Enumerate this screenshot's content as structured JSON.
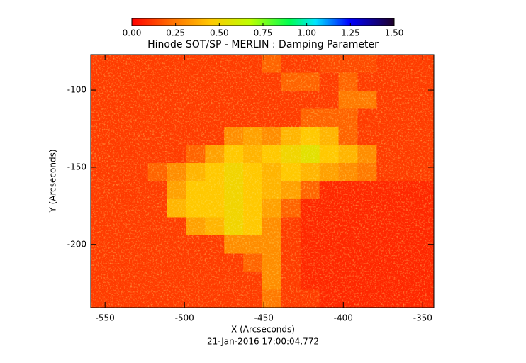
{
  "chart_data": {
    "type": "heatmap",
    "title": "Hinode SOT/SP - MERLIN : Damping Parameter",
    "x_label": "X (Arcseconds)",
    "y_label": "Y (Arcseconds)",
    "footer": "21-Jan-2016 17:00:04.772",
    "xlim": [
      -559,
      -343
    ],
    "ylim": [
      -241,
      -77
    ],
    "xticks": [
      -550,
      -500,
      -450,
      -400,
      -350
    ],
    "yticks": [
      -100,
      -150,
      -200
    ],
    "colorbar": {
      "range": [
        0,
        1.5
      ],
      "ticks": [
        {
          "value": 0,
          "label": "0.00"
        },
        {
          "value": 0.25,
          "label": "0.25"
        },
        {
          "value": 0.5,
          "label": "0.50"
        },
        {
          "value": 0.75,
          "label": "0.75"
        },
        {
          "value": 1,
          "label": "1.00"
        },
        {
          "value": 1.25,
          "label": "1.25"
        },
        {
          "value": 1.5,
          "label": "1.50"
        }
      ]
    },
    "z": [
      [
        0.12,
        0.12,
        0.12,
        0.12,
        0.12,
        0.12,
        0.12,
        0.12,
        0.12,
        0.2,
        0.12,
        0.12,
        0.15,
        0.15,
        0.15,
        0.12,
        0.12,
        0.12
      ],
      [
        0.12,
        0.12,
        0.12,
        0.12,
        0.12,
        0.12,
        0.12,
        0.12,
        0.12,
        0.12,
        0.2,
        0.2,
        0.12,
        0.2,
        0.12,
        0.12,
        0.12,
        0.12
      ],
      [
        0.12,
        0.12,
        0.12,
        0.12,
        0.12,
        0.12,
        0.12,
        0.12,
        0.12,
        0.12,
        0.12,
        0.12,
        0.12,
        0.25,
        0.25,
        0.12,
        0.12,
        0.12
      ],
      [
        0.12,
        0.12,
        0.12,
        0.12,
        0.12,
        0.12,
        0.12,
        0.12,
        0.12,
        0.12,
        0.12,
        0.2,
        0.2,
        0.2,
        0.12,
        0.12,
        0.12,
        0.12
      ],
      [
        0.12,
        0.12,
        0.12,
        0.12,
        0.12,
        0.12,
        0.12,
        0.3,
        0.35,
        0.3,
        0.4,
        0.45,
        0.4,
        0.2,
        0.12,
        0.12,
        0.12,
        0.12
      ],
      [
        0.12,
        0.12,
        0.12,
        0.12,
        0.12,
        0.2,
        0.35,
        0.45,
        0.4,
        0.45,
        0.5,
        0.55,
        0.45,
        0.4,
        0.3,
        0.12,
        0.12,
        0.12
      ],
      [
        0.12,
        0.12,
        0.12,
        0.2,
        0.3,
        0.4,
        0.45,
        0.5,
        0.45,
        0.4,
        0.45,
        0.4,
        0.35,
        0.3,
        0.25,
        0.12,
        0.12,
        0.12
      ],
      [
        0.12,
        0.12,
        0.12,
        0.12,
        0.35,
        0.45,
        0.45,
        0.5,
        0.45,
        0.4,
        0.35,
        0.2,
        0.08,
        0.08,
        0.08,
        0.08,
        0.08,
        0.08
      ],
      [
        0.12,
        0.12,
        0.12,
        0.12,
        0.4,
        0.45,
        0.45,
        0.5,
        0.45,
        0.35,
        0.2,
        0.08,
        0.08,
        0.08,
        0.08,
        0.08,
        0.08,
        0.08
      ],
      [
        0.12,
        0.12,
        0.12,
        0.12,
        0.12,
        0.35,
        0.4,
        0.5,
        0.45,
        0.3,
        0.12,
        0.08,
        0.08,
        0.08,
        0.08,
        0.08,
        0.08,
        0.08
      ],
      [
        0.12,
        0.12,
        0.12,
        0.12,
        0.12,
        0.12,
        0.12,
        0.3,
        0.3,
        0.3,
        0.12,
        0.08,
        0.08,
        0.08,
        0.08,
        0.08,
        0.08,
        0.08
      ],
      [
        0.12,
        0.12,
        0.12,
        0.12,
        0.12,
        0.12,
        0.12,
        0.12,
        0.2,
        0.3,
        0.12,
        0.08,
        0.08,
        0.08,
        0.08,
        0.08,
        0.08,
        0.08
      ],
      [
        0.12,
        0.12,
        0.12,
        0.12,
        0.12,
        0.12,
        0.12,
        0.12,
        0.12,
        0.3,
        0.12,
        0.08,
        0.08,
        0.08,
        0.08,
        0.08,
        0.08,
        0.08
      ],
      [
        0.12,
        0.12,
        0.12,
        0.12,
        0.12,
        0.12,
        0.12,
        0.12,
        0.12,
        0.25,
        0.12,
        0.12,
        0.08,
        0.08,
        0.08,
        0.08,
        0.08,
        0.08
      ]
    ]
  }
}
